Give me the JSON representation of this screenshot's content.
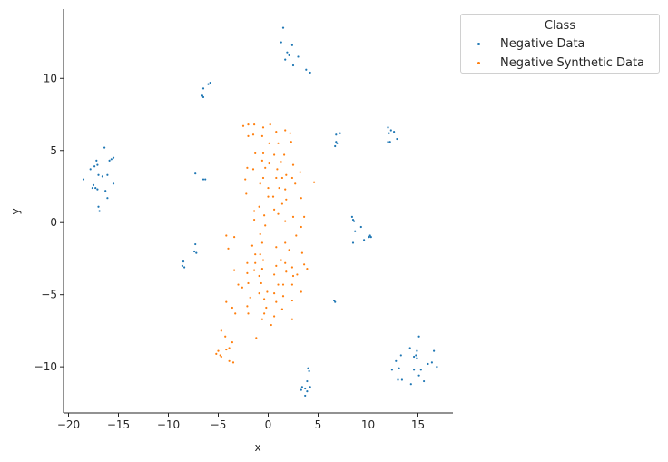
{
  "chart_data": {
    "type": "scatter",
    "title": "",
    "xlabel": "x",
    "ylabel": "y",
    "xlim": [
      -20.5,
      18.5
    ],
    "ylim": [
      -13.2,
      14.8
    ],
    "xticks": [
      -20,
      -15,
      -10,
      -5,
      0,
      5,
      10,
      15
    ],
    "yticks": [
      -10,
      -5,
      0,
      5,
      10
    ],
    "grid": false,
    "legend": {
      "title": "Class",
      "placement": "outside-top-right"
    },
    "series": [
      {
        "name": "Negative Data",
        "color": "#1f77b4",
        "points": [
          [
            1.5,
            13.5
          ],
          [
            1.3,
            12.5
          ],
          [
            2.4,
            12.3
          ],
          [
            1.9,
            11.8
          ],
          [
            2.1,
            11.6
          ],
          [
            1.7,
            11.3
          ],
          [
            3.0,
            11.5
          ],
          [
            2.5,
            10.9
          ],
          [
            3.8,
            10.6
          ],
          [
            4.2,
            10.4
          ],
          [
            -5.8,
            9.7
          ],
          [
            -6.0,
            9.6
          ],
          [
            -6.5,
            9.3
          ],
          [
            -6.6,
            8.8
          ],
          [
            -6.5,
            8.7
          ],
          [
            6.8,
            6.1
          ],
          [
            7.2,
            6.2
          ],
          [
            6.8,
            5.6
          ],
          [
            6.9,
            5.5
          ],
          [
            6.7,
            5.3
          ],
          [
            12.0,
            6.6
          ],
          [
            12.3,
            6.4
          ],
          [
            12.1,
            6.2
          ],
          [
            12.6,
            6.3
          ],
          [
            12.0,
            5.6
          ],
          [
            12.2,
            5.6
          ],
          [
            12.9,
            5.8
          ],
          [
            -16.4,
            5.2
          ],
          [
            -15.5,
            4.5
          ],
          [
            -15.7,
            4.4
          ],
          [
            -15.9,
            4.3
          ],
          [
            -17.2,
            4.3
          ],
          [
            -17.4,
            3.9
          ],
          [
            -17.1,
            4.0
          ],
          [
            -17.8,
            3.7
          ],
          [
            -16.6,
            3.2
          ],
          [
            -16.1,
            3.3
          ],
          [
            -17.0,
            3.3
          ],
          [
            -18.5,
            3.0
          ],
          [
            -17.5,
            2.6
          ],
          [
            -17.6,
            2.4
          ],
          [
            -17.3,
            2.4
          ],
          [
            -17.1,
            2.3
          ],
          [
            -15.5,
            2.7
          ],
          [
            -16.3,
            2.2
          ],
          [
            -16.1,
            1.7
          ],
          [
            -17.0,
            1.1
          ],
          [
            -16.9,
            0.8
          ],
          [
            -7.3,
            3.4
          ],
          [
            -6.5,
            3.0
          ],
          [
            -6.3,
            3.0
          ],
          [
            8.4,
            0.4
          ],
          [
            8.5,
            0.2
          ],
          [
            8.6,
            0.1
          ],
          [
            9.3,
            -0.3
          ],
          [
            8.7,
            -0.6
          ],
          [
            10.2,
            -0.9
          ],
          [
            10.1,
            -1.0
          ],
          [
            10.3,
            -1.0
          ],
          [
            9.6,
            -1.2
          ],
          [
            8.5,
            -1.4
          ],
          [
            -7.3,
            -1.5
          ],
          [
            -7.4,
            -2.0
          ],
          [
            -7.2,
            -2.1
          ],
          [
            -8.5,
            -2.7
          ],
          [
            -8.6,
            -3.0
          ],
          [
            -8.4,
            -3.1
          ],
          [
            6.6,
            -5.4
          ],
          [
            6.7,
            -5.5
          ],
          [
            15.1,
            -7.9
          ],
          [
            14.2,
            -8.7
          ],
          [
            14.9,
            -8.9
          ],
          [
            16.6,
            -8.9
          ],
          [
            13.3,
            -9.2
          ],
          [
            14.6,
            -9.3
          ],
          [
            14.8,
            -9.2
          ],
          [
            14.9,
            -9.4
          ],
          [
            12.8,
            -9.6
          ],
          [
            16.4,
            -9.7
          ],
          [
            16.0,
            -9.8
          ],
          [
            16.9,
            -10.0
          ],
          [
            12.4,
            -10.2
          ],
          [
            13.1,
            -10.1
          ],
          [
            14.6,
            -10.2
          ],
          [
            15.3,
            -10.2
          ],
          [
            15.1,
            -10.6
          ],
          [
            13.4,
            -10.9
          ],
          [
            13.0,
            -10.9
          ],
          [
            15.6,
            -11.0
          ],
          [
            14.3,
            -11.2
          ],
          [
            4.0,
            -10.1
          ],
          [
            4.1,
            -10.3
          ],
          [
            3.9,
            -11.0
          ],
          [
            4.2,
            -11.4
          ],
          [
            3.7,
            -11.5
          ],
          [
            3.4,
            -11.4
          ],
          [
            3.3,
            -11.6
          ],
          [
            3.9,
            -11.7
          ],
          [
            3.7,
            -12.0
          ]
        ]
      },
      {
        "name": "Negative Synthetic Data",
        "color": "#ff7f0e",
        "points": [
          [
            -2.5,
            6.7
          ],
          [
            -2.0,
            6.8
          ],
          [
            -1.4,
            6.8
          ],
          [
            0.2,
            6.8
          ],
          [
            1.7,
            6.4
          ],
          [
            2.2,
            6.2
          ],
          [
            -0.5,
            6.6
          ],
          [
            0.8,
            6.3
          ],
          [
            -2.0,
            6.0
          ],
          [
            -1.5,
            6.1
          ],
          [
            -0.6,
            6.0
          ],
          [
            2.3,
            5.6
          ],
          [
            0.1,
            5.5
          ],
          [
            1.0,
            5.5
          ],
          [
            -1.3,
            4.8
          ],
          [
            -0.5,
            4.8
          ],
          [
            0.6,
            4.7
          ],
          [
            1.6,
            4.7
          ],
          [
            -0.6,
            4.3
          ],
          [
            0.1,
            4.1
          ],
          [
            1.3,
            4.2
          ],
          [
            2.5,
            4.0
          ],
          [
            -2.1,
            3.8
          ],
          [
            -1.5,
            3.7
          ],
          [
            -0.3,
            3.8
          ],
          [
            0.9,
            3.7
          ],
          [
            1.8,
            3.3
          ],
          [
            3.2,
            3.5
          ],
          [
            -2.3,
            3.0
          ],
          [
            -0.5,
            3.1
          ],
          [
            0.8,
            3.1
          ],
          [
            1.4,
            3.1
          ],
          [
            2.4,
            3.1
          ],
          [
            4.6,
            2.8
          ],
          [
            -0.8,
            2.7
          ],
          [
            2.7,
            2.7
          ],
          [
            0.0,
            2.4
          ],
          [
            1.1,
            2.4
          ],
          [
            1.7,
            2.3
          ],
          [
            -2.2,
            2.0
          ],
          [
            0.0,
            1.8
          ],
          [
            0.5,
            1.8
          ],
          [
            3.3,
            1.7
          ],
          [
            1.8,
            1.6
          ],
          [
            -0.9,
            1.1
          ],
          [
            1.4,
            1.3
          ],
          [
            0.6,
            0.9
          ],
          [
            -1.4,
            0.8
          ],
          [
            1.0,
            0.6
          ],
          [
            3.6,
            0.4
          ],
          [
            -0.4,
            0.5
          ],
          [
            -1.4,
            0.2
          ],
          [
            1.7,
            0.1
          ],
          [
            2.5,
            0.4
          ],
          [
            -0.3,
            -0.2
          ],
          [
            3.3,
            -0.3
          ],
          [
            -0.8,
            -0.8
          ],
          [
            -4.2,
            -0.9
          ],
          [
            -3.4,
            -1.0
          ],
          [
            2.8,
            -0.9
          ],
          [
            -0.6,
            -1.4
          ],
          [
            1.7,
            -1.4
          ],
          [
            -1.6,
            -1.6
          ],
          [
            0.8,
            -1.7
          ],
          [
            -4.0,
            -1.8
          ],
          [
            -1.3,
            -2.2
          ],
          [
            2.1,
            -1.9
          ],
          [
            -0.8,
            -2.2
          ],
          [
            3.4,
            -2.1
          ],
          [
            -0.5,
            -2.6
          ],
          [
            1.3,
            -2.6
          ],
          [
            -2.1,
            -2.8
          ],
          [
            -1.3,
            -2.8
          ],
          [
            1.7,
            -2.8
          ],
          [
            3.6,
            -2.9
          ],
          [
            0.8,
            -3.0
          ],
          [
            2.4,
            -3.1
          ],
          [
            -0.6,
            -3.2
          ],
          [
            3.9,
            -3.2
          ],
          [
            -3.4,
            -3.3
          ],
          [
            -1.4,
            -3.3
          ],
          [
            1.8,
            -3.4
          ],
          [
            -2.1,
            -3.5
          ],
          [
            0.6,
            -3.6
          ],
          [
            2.5,
            -3.7
          ],
          [
            -0.9,
            -3.7
          ],
          [
            2.9,
            -3.6
          ],
          [
            -2.0,
            -4.2
          ],
          [
            -3.0,
            -4.3
          ],
          [
            -0.7,
            -4.2
          ],
          [
            1.0,
            -4.3
          ],
          [
            2.4,
            -4.3
          ],
          [
            -2.6,
            -4.5
          ],
          [
            1.5,
            -4.3
          ],
          [
            -0.1,
            -4.8
          ],
          [
            -0.9,
            -4.9
          ],
          [
            0.6,
            -4.9
          ],
          [
            1.5,
            -5.1
          ],
          [
            3.3,
            -4.8
          ],
          [
            -1.8,
            -5.2
          ],
          [
            -0.4,
            -5.3
          ],
          [
            -4.2,
            -5.5
          ],
          [
            0.8,
            -5.5
          ],
          [
            2.4,
            -5.4
          ],
          [
            -2.1,
            -5.8
          ],
          [
            -3.6,
            -5.9
          ],
          [
            -0.2,
            -5.9
          ],
          [
            1.4,
            -6.0
          ],
          [
            -3.3,
            -6.3
          ],
          [
            -0.4,
            -6.3
          ],
          [
            -2.0,
            -6.3
          ],
          [
            0.6,
            -6.5
          ],
          [
            -0.6,
            -6.7
          ],
          [
            2.4,
            -6.7
          ],
          [
            0.3,
            -7.1
          ],
          [
            -4.7,
            -7.5
          ],
          [
            -4.3,
            -7.9
          ],
          [
            -1.2,
            -8.0
          ],
          [
            -3.6,
            -8.3
          ],
          [
            -3.9,
            -8.7
          ],
          [
            -4.2,
            -8.8
          ],
          [
            -5.0,
            -8.9
          ],
          [
            -5.2,
            -9.1
          ],
          [
            -4.8,
            -9.2
          ],
          [
            -4.7,
            -9.3
          ],
          [
            -3.9,
            -9.6
          ],
          [
            -3.5,
            -9.7
          ]
        ]
      }
    ]
  }
}
